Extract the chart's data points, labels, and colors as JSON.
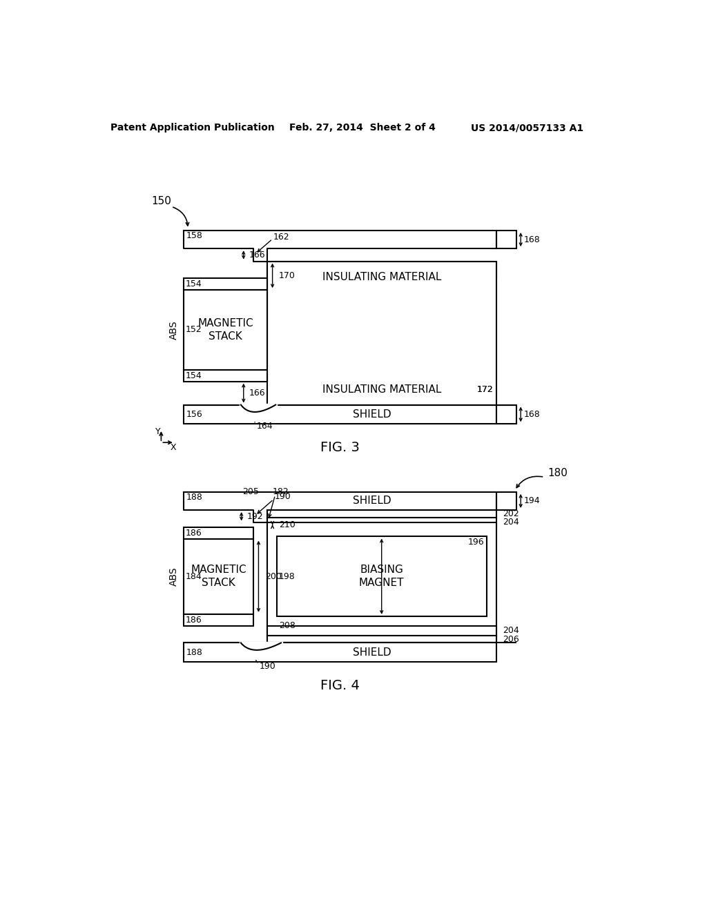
{
  "bg_color": "#ffffff",
  "line_color": "#000000",
  "header_left": "Patent Application Publication",
  "header_center": "Feb. 27, 2014  Sheet 2 of 4",
  "header_right": "US 2014/0057133 A1",
  "fig3_label": "FIG. 3",
  "fig4_label": "FIG. 4"
}
